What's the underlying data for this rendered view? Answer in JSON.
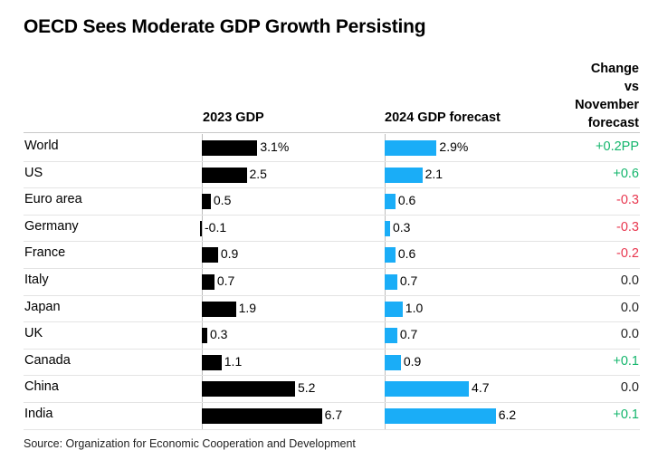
{
  "title": "OECD Sees Moderate GDP Growth Persisting",
  "source": "Source: Organization for Economic Cooperation and Development",
  "columns": {
    "gdp2023": "2023 GDP",
    "gdp2024": "2024 GDP forecast",
    "change": [
      "Change",
      "vs",
      "November",
      "forecast"
    ]
  },
  "colors": {
    "bar_2023": "#000000",
    "bar_2024": "#1aadf7",
    "positive": "#12b56b",
    "negative": "#e8374f",
    "neutral": "#222222"
  },
  "chart_data": {
    "type": "bar",
    "title": "OECD Sees Moderate GDP Growth Persisting",
    "categories": [
      "World",
      "US",
      "Euro area",
      "Germany",
      "France",
      "Italy",
      "Japan",
      "UK",
      "Canada",
      "China",
      "India"
    ],
    "series": [
      {
        "name": "2023 GDP",
        "values": [
          3.1,
          2.5,
          0.5,
          -0.1,
          0.9,
          0.7,
          1.9,
          0.3,
          1.1,
          5.2,
          6.7
        ],
        "labels": [
          "3.1%",
          "2.5",
          "0.5",
          "-0.1",
          "0.9",
          "0.7",
          "1.9",
          "0.3",
          "1.1",
          "5.2",
          "6.7"
        ]
      },
      {
        "name": "2024 GDP forecast",
        "values": [
          2.9,
          2.1,
          0.6,
          0.3,
          0.6,
          0.7,
          1.0,
          0.7,
          0.9,
          4.7,
          6.2
        ],
        "labels": [
          "2.9%",
          "2.1",
          "0.6",
          "0.3",
          "0.6",
          "0.7",
          "1.0",
          "0.7",
          "0.9",
          "4.7",
          "6.2"
        ]
      }
    ],
    "change_vs_november": {
      "values": [
        0.2,
        0.6,
        -0.3,
        -0.3,
        -0.2,
        0.0,
        0.0,
        0.0,
        0.1,
        0.0,
        0.1
      ],
      "labels": [
        "+0.2PP",
        "+0.6",
        "-0.3",
        "-0.3",
        "-0.2",
        "0.0",
        "0.0",
        "0.0",
        "+0.1",
        "0.0",
        "+0.1"
      ]
    },
    "xlim": [
      -0.1,
      6.7
    ],
    "grid": false,
    "legend": "none"
  }
}
